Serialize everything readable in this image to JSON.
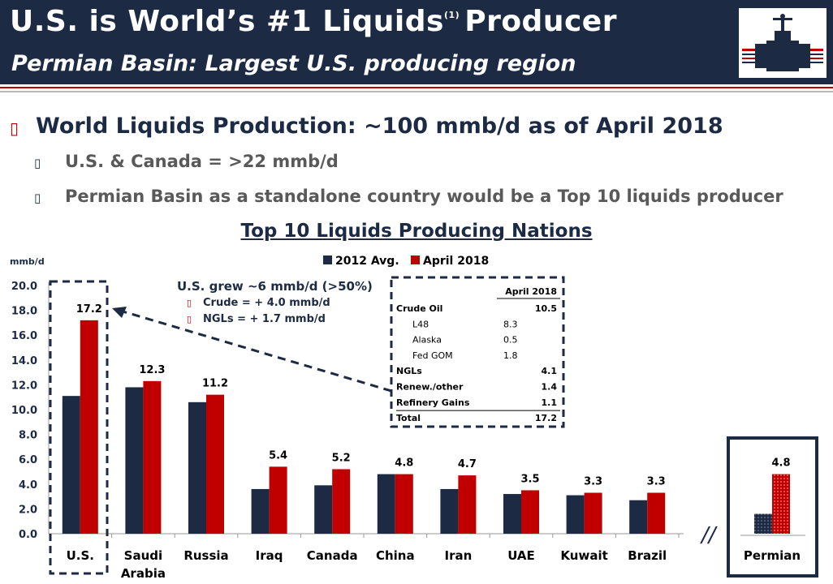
{
  "header": {
    "title": "U.S. is World’s #1 Liquids",
    "title_sup": "(1)",
    "title_end": "Producer",
    "subtitle": "Permian Basin: Largest U.S. producing region"
  },
  "bullets": {
    "main": "World Liquids Production: ~100 mmb/d as of April 2018",
    "sub1": "U.S. & Canada =  >22 mmb/d",
    "sub2": "Permian Basin as a standalone country would be a Top 10 liquids producer"
  },
  "chart_data": {
    "type": "bar",
    "title": "Top 10 Liquids Producing Nations",
    "ylabel": "mmb/d",
    "ylim": [
      0,
      20
    ],
    "yticks": [
      "0.0",
      "2.0",
      "4.0",
      "6.0",
      "8.0",
      "10.0",
      "12.0",
      "14.0",
      "16.0",
      "18.0",
      "20.0"
    ],
    "legend_position": "top",
    "categories": [
      {
        "label": "U.S.",
        "label2": ""
      },
      {
        "label": "Saudi",
        "label2": "Arabia"
      },
      {
        "label": "Russia",
        "label2": ""
      },
      {
        "label": "Iraq",
        "label2": ""
      },
      {
        "label": "Canada",
        "label2": ""
      },
      {
        "label": "China",
        "label2": ""
      },
      {
        "label": "Iran",
        "label2": ""
      },
      {
        "label": "UAE",
        "label2": ""
      },
      {
        "label": "Kuwait",
        "label2": ""
      },
      {
        "label": "Brazil",
        "label2": ""
      }
    ],
    "series": [
      {
        "name": "2012 Avg.",
        "color": "#1c2a44",
        "values": [
          11.1,
          11.8,
          10.6,
          3.6,
          3.9,
          4.8,
          3.6,
          3.2,
          3.1,
          2.7
        ]
      },
      {
        "name": "April 2018",
        "color": "#c00000",
        "values": [
          17.2,
          12.3,
          11.2,
          5.4,
          5.2,
          4.8,
          4.7,
          3.5,
          3.3,
          3.3
        ]
      }
    ],
    "data_labels": [
      "17.2",
      "12.3",
      "11.2",
      "5.4",
      "5.2",
      "4.8",
      "4.7",
      "3.5",
      "3.3",
      "3.3"
    ],
    "permian": {
      "label": "Permian",
      "values": [
        1.6,
        4.8
      ],
      "data_label": "4.8"
    }
  },
  "annotation": {
    "headline": "U.S. grew ~6 mmb/d (>50%)",
    "line1": "Crude = + 4.0 mmb/d",
    "line2": "NGLs = + 1.7 mmb/d"
  },
  "breakdown_table": {
    "header": "April 2018",
    "rows": [
      {
        "label": "Crude Oil",
        "value": "10.5",
        "bold": true,
        "indent": false
      },
      {
        "label": "L48",
        "value": "8.3",
        "bold": false,
        "indent": true
      },
      {
        "label": "Alaska",
        "value": "0.5",
        "bold": false,
        "indent": true
      },
      {
        "label": "Fed GOM",
        "value": "1.8",
        "bold": false,
        "indent": true
      },
      {
        "label": "NGLs",
        "value": "4.1",
        "bold": true,
        "indent": false
      },
      {
        "label": "Renew./other",
        "value": "1.4",
        "bold": true,
        "indent": false
      },
      {
        "label": "Refinery Gains",
        "value": "1.1",
        "bold": true,
        "indent": false
      },
      {
        "label": "Total",
        "value": "17.2",
        "bold": true,
        "indent": false
      }
    ]
  },
  "colors": {
    "navy": "#1c2a44",
    "red": "#c00000"
  },
  "icons": {
    "bullet": "square-bullet-icon",
    "logo": "pumpjack-valve-logo"
  }
}
